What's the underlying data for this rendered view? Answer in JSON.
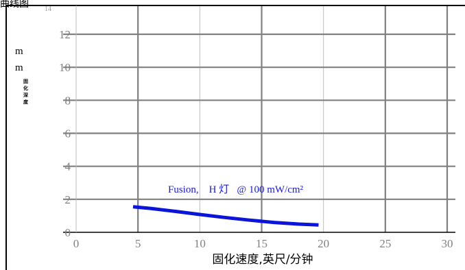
{
  "chart_data": {
    "type": "line",
    "title": "曲线图",
    "xlabel": "固化速度,英尺/分钟",
    "ylabel_lines": [
      "m",
      "m"
    ],
    "ylabel_vertical": [
      "固",
      "化",
      "深",
      "度"
    ],
    "xlim": [
      0,
      30
    ],
    "ylim": [
      0,
      14
    ],
    "x_ticks": [
      0,
      5,
      10,
      15,
      20,
      25,
      30
    ],
    "y_ticks": [
      0,
      2,
      4,
      6,
      8,
      10,
      12,
      14
    ],
    "grid": true,
    "annotation": "Fusion,    H 灯   @ 100 mW/cm²",
    "series": [
      {
        "color": "#0b14d9",
        "x": [
          4.6,
          6,
          8,
          10,
          12,
          14,
          16,
          18,
          19.6
        ],
        "y": [
          1.55,
          1.45,
          1.27,
          1.08,
          0.9,
          0.74,
          0.6,
          0.5,
          0.45
        ]
      }
    ]
  }
}
